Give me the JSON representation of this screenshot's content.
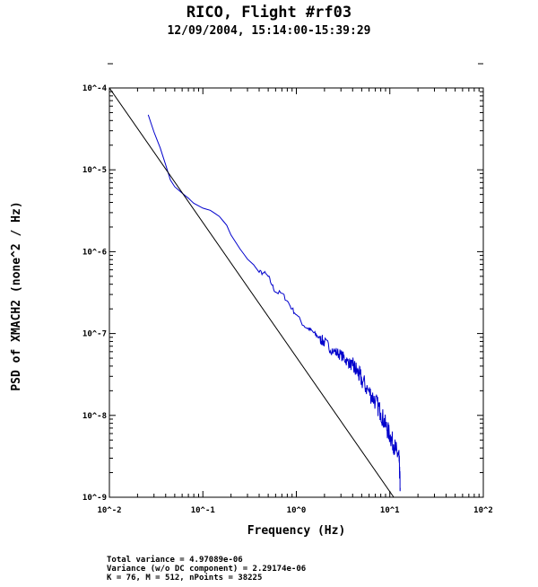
{
  "chart_data": {
    "type": "line",
    "title": "RICO, Flight #rf03",
    "subtitle": "12/09/2004, 15:14:00-15:39:29",
    "xlabel": "Frequency (Hz)",
    "ylabel": "PSD of XMACH2 (none^2 / Hz)",
    "xscale": "log",
    "yscale": "log",
    "xlim": [
      0.01,
      100
    ],
    "ylim": [
      1e-09,
      0.0001
    ],
    "x_ticks": [
      0.01,
      0.1,
      1,
      10,
      100
    ],
    "x_tick_labels": [
      "10^-2",
      "10^-1",
      "10^0",
      "10^1",
      "10^2"
    ],
    "y_ticks": [
      1e-09,
      1e-08,
      1e-07,
      1e-06,
      1e-05,
      0.0001
    ],
    "y_tick_labels": [
      "10^-9",
      "10^-8",
      "10^-7",
      "10^-6",
      "10^-5",
      "10^-4"
    ],
    "grid": false,
    "series": [
      {
        "color": "#0000cc",
        "x": [
          0.026,
          0.03,
          0.035,
          0.04,
          0.045,
          0.05,
          0.06,
          0.07,
          0.08,
          0.1,
          0.12,
          0.15,
          0.18,
          0.2,
          0.25,
          0.3,
          0.35,
          0.4,
          0.45,
          0.5,
          0.55,
          0.6,
          0.7,
          0.8,
          0.9,
          1.0,
          1.2,
          1.5,
          1.8,
          2.0,
          2.5,
          3.0,
          3.5,
          4.0,
          4.5,
          5.0,
          6.0,
          7.0,
          8.0,
          9.0,
          10.0,
          11.0,
          12.0,
          12.6,
          12.9
        ],
        "y": [
          4.7e-05,
          2.9e-05,
          1.85e-05,
          1.15e-05,
          7.5e-06,
          6.2e-06,
          5.2e-06,
          4.5e-06,
          3.9e-06,
          3.4e-06,
          3.2e-06,
          2.7e-06,
          2.1e-06,
          1.6e-06,
          1.08e-06,
          8.1e-07,
          6.9e-07,
          5.6e-07,
          5.5e-07,
          5e-07,
          3.9e-07,
          3.2e-07,
          3.1e-07,
          2.5e-07,
          2e-07,
          1.7e-07,
          1.25e-07,
          1.05e-07,
          8.6e-08,
          7.8e-08,
          6.1e-08,
          5.5e-08,
          4.6e-08,
          4e-08,
          3.4e-08,
          2.7e-08,
          1.95e-08,
          1.5e-08,
          1.08e-08,
          7.6e-09,
          5.7e-09,
          4.4e-09,
          3.4e-09,
          2.8e-09,
          1.3e-09
        ]
      },
      {
        "color": "#000000",
        "x": [
          0.01,
          11.0
        ],
        "y": [
          0.0001,
          1e-09
        ]
      }
    ]
  },
  "stats": {
    "line1": "Total variance = 4.97089e-06",
    "line2": "Variance (w/o DC component) = 2.29174e-06",
    "line3": "K = 76, M = 512, nPoints = 38225"
  }
}
